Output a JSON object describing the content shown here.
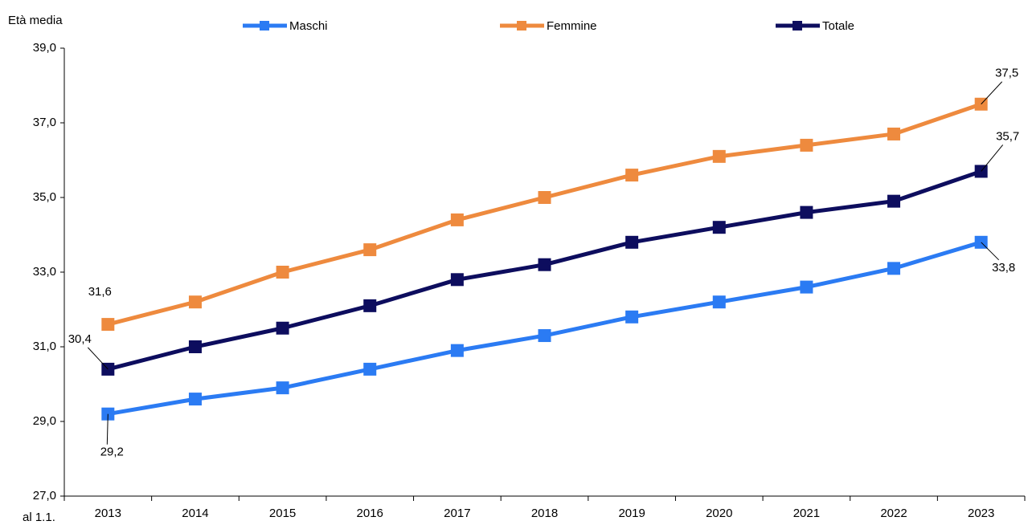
{
  "chart_data": {
    "type": "line",
    "y_label": "Età media",
    "x_label": "al 1.1.",
    "categories": [
      "2013",
      "2014",
      "2015",
      "2016",
      "2017",
      "2018",
      "2019",
      "2020",
      "2021",
      "2022",
      "2023"
    ],
    "series": [
      {
        "name": "Maschi",
        "color": "#2b7bf3",
        "values": [
          29.2,
          29.6,
          29.9,
          30.4,
          30.9,
          31.3,
          31.8,
          32.2,
          32.6,
          33.1,
          33.8
        ],
        "value_labels": [
          "29,2",
          null,
          null,
          null,
          null,
          null,
          null,
          null,
          null,
          null,
          "33,8"
        ]
      },
      {
        "name": "Femmine",
        "color": "#ee8a3e",
        "values": [
          31.6,
          32.2,
          33.0,
          33.6,
          34.4,
          35.0,
          35.6,
          36.1,
          36.4,
          36.7,
          37.5
        ],
        "value_labels": [
          "31,6",
          null,
          null,
          null,
          null,
          null,
          null,
          null,
          null,
          null,
          "37,5"
        ]
      },
      {
        "name": "Totale",
        "color": "#0d0d5e",
        "values": [
          30.4,
          31.0,
          31.5,
          32.1,
          32.8,
          33.2,
          33.8,
          34.2,
          34.6,
          34.9,
          35.7
        ],
        "value_labels": [
          "30,4",
          null,
          null,
          null,
          null,
          null,
          null,
          null,
          null,
          null,
          "35,7"
        ]
      }
    ],
    "ylim": [
      27,
      39
    ],
    "yticks": [
      {
        "value": 27,
        "label": "27,0"
      },
      {
        "value": 29,
        "label": "29,0"
      },
      {
        "value": 31,
        "label": "31,0"
      },
      {
        "value": 33,
        "label": "33,0"
      },
      {
        "value": 35,
        "label": "35,0"
      },
      {
        "value": 37,
        "label": "37,0"
      },
      {
        "value": 39,
        "label": "39,0"
      }
    ],
    "grid": false
  }
}
